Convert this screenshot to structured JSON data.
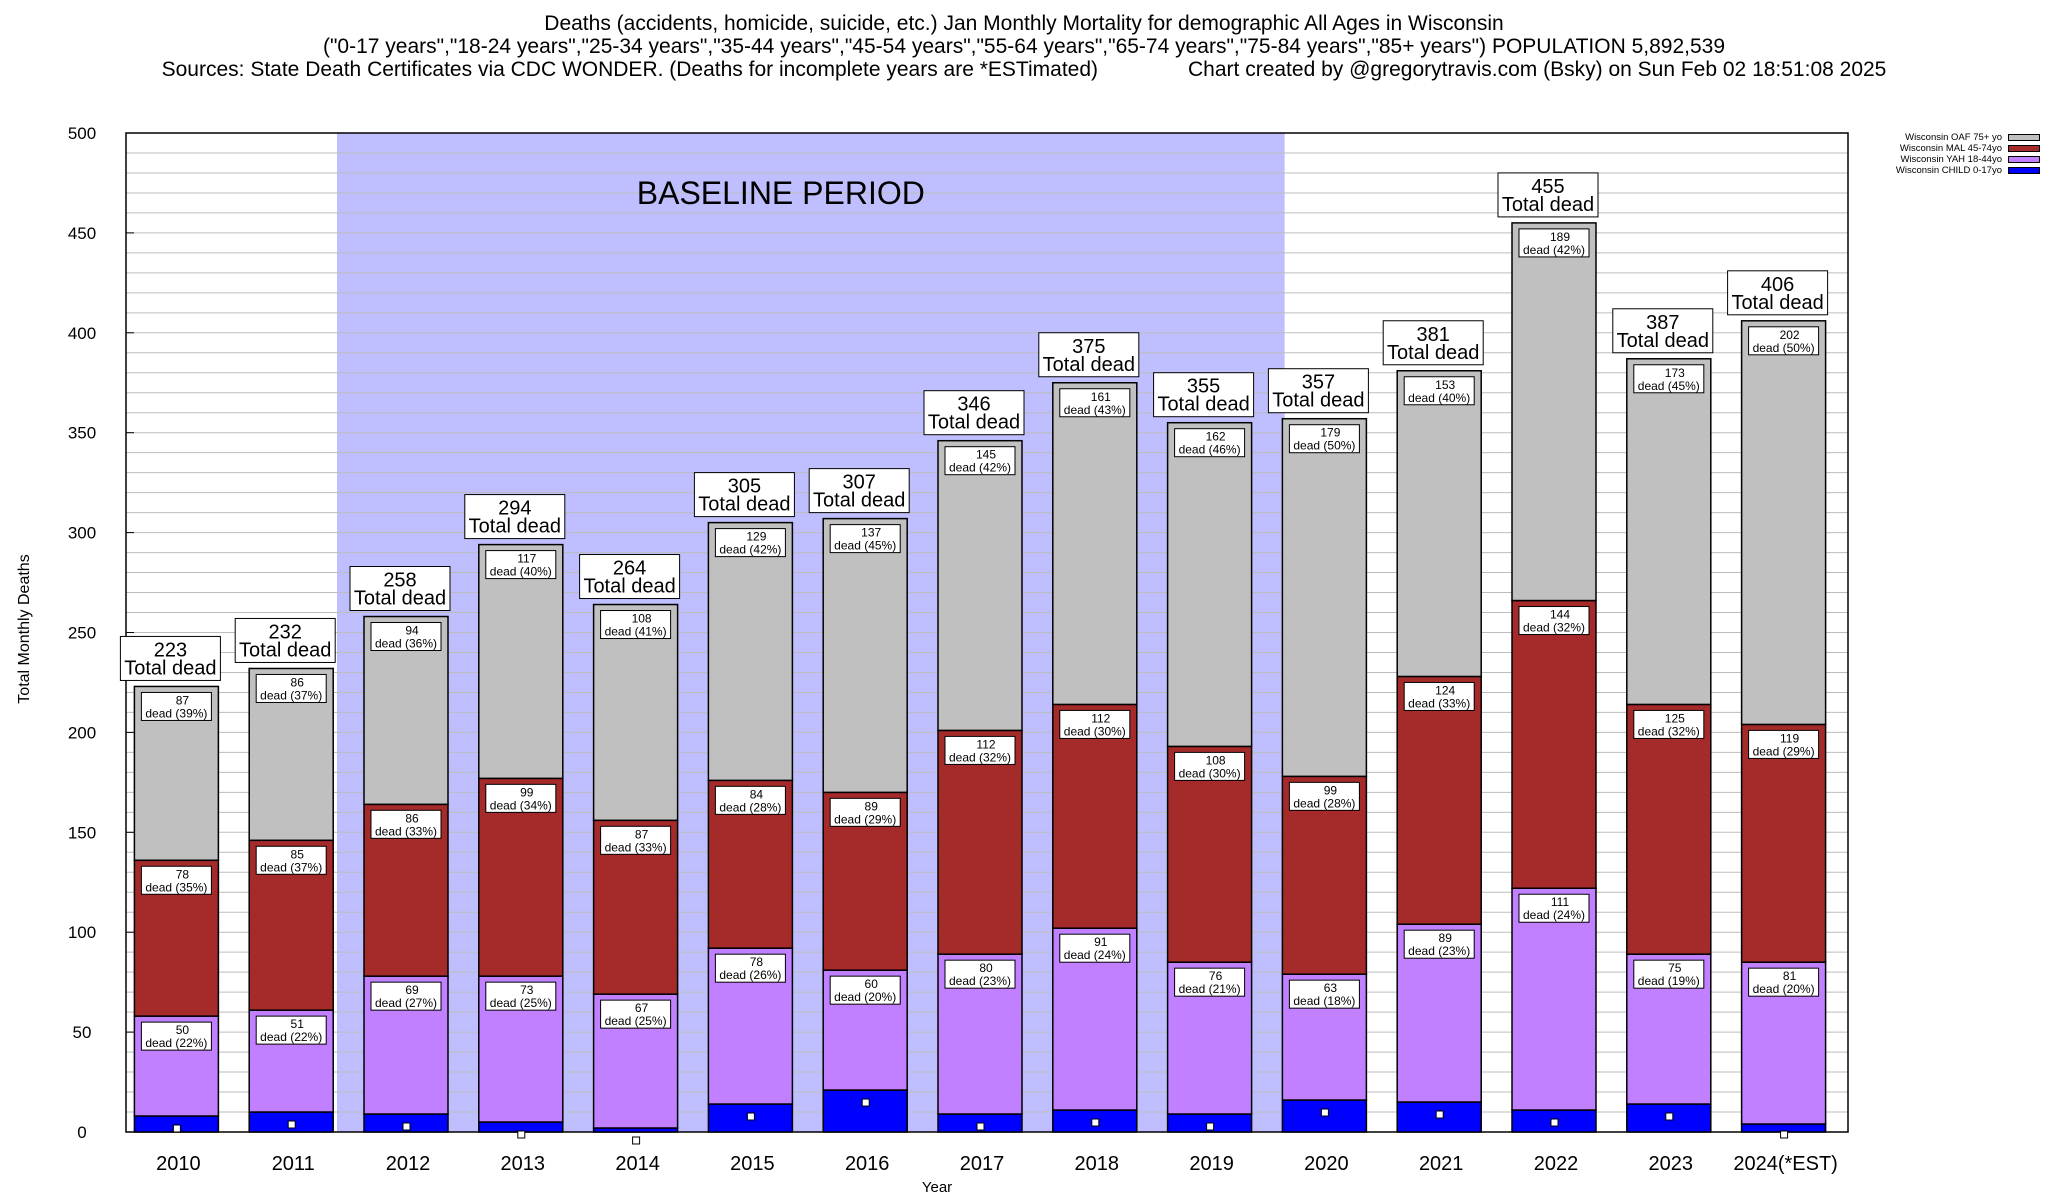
{
  "chart_data": {
    "type": "bar",
    "stacked": true,
    "title": "Deaths (accidents, homicide, suicide, etc.) Jan Monthly Mortality for demographic All Ages in Wisconsin",
    "subtitle": "(\"0-17 years\",\"18-24 years\",\"25-34 years\",\"35-44 years\",\"45-54 years\",\"55-64 years\",\"65-74 years\",\"75-84 years\",\"85+ years\") POPULATION 5,892,539",
    "source_note": "Sources: State Death Certificates via CDC WONDER. (Deaths for incomplete years are *ESTimated)",
    "credit": "Chart created by @gregorytravis.com (Bsky) on Sun Feb 02 18:51:08 2025",
    "xlabel": "Year",
    "ylabel": "Total Monthly Deaths",
    "ylim": [
      0,
      500
    ],
    "yticks": [
      0,
      50,
      100,
      150,
      200,
      250,
      300,
      350,
      400,
      450,
      500
    ],
    "minor_grid_step": 10,
    "grid": true,
    "legend_position": "top-right",
    "annotation": {
      "text": "BASELINE PERIOD",
      "from_category": "2012",
      "to_category": "2019",
      "color": "#bfbfff"
    },
    "total_label_suffix": "Total dead",
    "segment_label_prefix": "dead",
    "categories": [
      "2010",
      "2011",
      "2012",
      "2013",
      "2014",
      "2015",
      "2016",
      "2017",
      "2018",
      "2019",
      "2020",
      "2021",
      "2022",
      "2023",
      "2024(*EST)"
    ],
    "totals": [
      223,
      232,
      258,
      294,
      264,
      305,
      307,
      346,
      375,
      355,
      357,
      381,
      455,
      387,
      406
    ],
    "series": [
      {
        "name": "Wisconsin CHILD 0-17yo",
        "color": "#0000ff",
        "labeled": false,
        "values": [
          8,
          10,
          9,
          5,
          2,
          14,
          21,
          9,
          11,
          9,
          16,
          15,
          11,
          14,
          4
        ]
      },
      {
        "name": "Wisconsin YAH 18-44yo",
        "color": "#c080ff",
        "labeled": true,
        "values": [
          50,
          51,
          69,
          73,
          67,
          78,
          60,
          80,
          91,
          76,
          63,
          89,
          111,
          75,
          81
        ],
        "percents": [
          22,
          22,
          27,
          25,
          25,
          26,
          20,
          23,
          24,
          21,
          18,
          23,
          24,
          19,
          20
        ]
      },
      {
        "name": "Wisconsin MAL 45-74yo",
        "color": "#a52a2a",
        "labeled": true,
        "values": [
          78,
          85,
          86,
          99,
          87,
          84,
          89,
          112,
          112,
          108,
          99,
          124,
          144,
          125,
          119
        ],
        "percents": [
          35,
          37,
          33,
          34,
          33,
          28,
          29,
          32,
          30,
          30,
          28,
          33,
          32,
          32,
          29
        ]
      },
      {
        "name": "Wisconsin OAF 75+ yo",
        "color": "#c0c0c0",
        "labeled": true,
        "values": [
          87,
          86,
          94,
          117,
          108,
          129,
          137,
          145,
          161,
          162,
          179,
          153,
          189,
          173,
          202
        ],
        "percents": [
          39,
          37,
          36,
          40,
          41,
          42,
          45,
          42,
          43,
          46,
          50,
          40,
          42,
          45,
          50
        ]
      }
    ],
    "child_markers": [
      2,
      4,
      3,
      -1,
      -4,
      8,
      15,
      3,
      5,
      3,
      10,
      9,
      5,
      8,
      -1
    ]
  }
}
